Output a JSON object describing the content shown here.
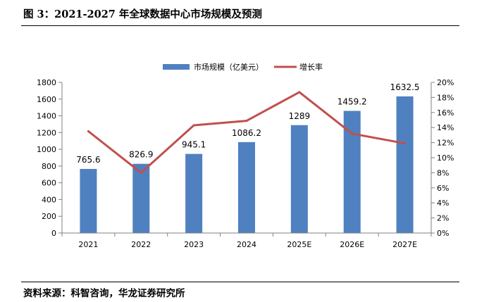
{
  "figure": {
    "title": "图 3：2021-2027 年全球数据中心市场规模及预测",
    "source": "资料来源：科智咨询，华龙证券研究所"
  },
  "colors": {
    "bar": "#4f81c0",
    "line": "#c0504d",
    "axis": "#808080",
    "text": "#000000"
  },
  "chart_data": {
    "type": "bar",
    "categories": [
      "2021",
      "2022",
      "2023",
      "2024",
      "2025E",
      "2026E",
      "2027E"
    ],
    "series": [
      {
        "name": "市场规模（亿美元）",
        "kind": "bar",
        "axis": "left",
        "values": [
          765.6,
          826.9,
          945.1,
          1086.2,
          1289,
          1459.2,
          1632.5
        ],
        "labels": [
          "765.6",
          "826.9",
          "945.1",
          "1086.2",
          "1289",
          "1459.2",
          "1632.5"
        ]
      },
      {
        "name": "增长率",
        "kind": "line",
        "axis": "right",
        "values": [
          13.5,
          8.0,
          14.3,
          14.9,
          18.7,
          13.2,
          11.9
        ]
      }
    ],
    "y_left": {
      "min": 0,
      "max": 1800,
      "step": 200,
      "ticks": [
        "0",
        "200",
        "400",
        "600",
        "800",
        "1000",
        "1200",
        "1400",
        "1600",
        "1800"
      ]
    },
    "y_right": {
      "min": 0,
      "max": 20,
      "step": 2,
      "ticks": [
        "0%",
        "2%",
        "4%",
        "6%",
        "8%",
        "10%",
        "12%",
        "14%",
        "16%",
        "18%",
        "20%"
      ]
    },
    "legend_position": "top-center",
    "grid": false
  }
}
